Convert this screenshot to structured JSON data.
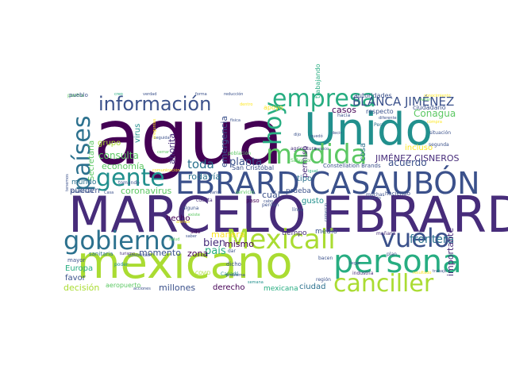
{
  "colors": {
    "background": "#ffffff",
    "palette": [
      "#440154",
      "#472c7a",
      "#3b518b",
      "#2c718e",
      "#21908d",
      "#27ad81",
      "#5cc863",
      "#aadc32",
      "#fde725"
    ]
  },
  "words": [
    {
      "text": "agua",
      "color": "#440154"
    },
    {
      "text": "MARCELO EBRARD",
      "color": "#472c7a"
    },
    {
      "text": "mexicano",
      "color": "#aadc32"
    },
    {
      "text": "Unido",
      "color": "#21908d"
    },
    {
      "text": "EBRARD CASAUBÓN",
      "color": "#3b518b"
    },
    {
      "text": "persona",
      "color": "#27ad81"
    },
    {
      "text": "gobierno",
      "color": "#2c718e"
    },
    {
      "text": "Mexicali",
      "color": "#aadc32"
    },
    {
      "text": "canciller",
      "color": "#aadc32"
    },
    {
      "text": "vuelo",
      "color": "#3b518b"
    },
    {
      "text": "medida",
      "color": "#5cc863"
    },
    {
      "text": "empresa",
      "color": "#27ad81"
    },
    {
      "text": "información",
      "color": "#3b518b"
    },
    {
      "text": "gente",
      "color": "#21908d"
    },
    {
      "text": "países",
      "color": "#2c718e"
    },
    {
      "text": "hoy",
      "color": "#27ad81"
    },
    {
      "text": "BLANCA JIMÉNEZ",
      "color": "#3b518b"
    },
    {
      "text": "JIMÉNEZ CISNEROS",
      "color": "#472c7a"
    },
    {
      "text": "Conagua",
      "color": "#5cc863"
    },
    {
      "text": "frontera",
      "color": "#2c718e"
    },
    {
      "text": "acuerdo",
      "color": "#3b518b"
    },
    {
      "text": "importante",
      "color": "#472c7a"
    },
    {
      "text": "toda",
      "color": "#2c718e"
    },
    {
      "text": "planta",
      "color": "#3b518b"
    },
    {
      "text": "bien",
      "color": "#472c7a"
    },
    {
      "text": "mismo",
      "color": "#440154"
    },
    {
      "text": "país",
      "color": "#27ad81"
    },
    {
      "text": "momento",
      "color": "#3b518b"
    },
    {
      "text": "zona",
      "color": "#440154"
    },
    {
      "text": "manera",
      "color": "#fde725"
    },
    {
      "text": "casos",
      "color": "#440154"
    },
    {
      "text": "permiso",
      "color": "#472c7a"
    },
    {
      "text": "tipo",
      "color": "#2c718e"
    },
    {
      "text": "cosa",
      "color": "#2c718e"
    },
    {
      "text": "incluso",
      "color": "#fde725"
    },
    {
      "text": "ahorita",
      "color": "#472c7a"
    },
    {
      "text": "rodavía",
      "color": "#2c718e"
    },
    {
      "text": "emergencia",
      "color": "#3b518b"
    },
    {
      "text": "consulta",
      "color": "#5cc863"
    },
    {
      "text": "economía",
      "color": "#5cc863"
    },
    {
      "text": "coronavirus",
      "color": "#5cc863"
    },
    {
      "text": "Secretaría",
      "color": "#5cc863"
    },
    {
      "text": "virus",
      "color": "#21908d"
    },
    {
      "text": "grupo",
      "color": "#aadc32"
    },
    {
      "text": "mundo",
      "color": "#2c718e"
    },
    {
      "text": "pueden",
      "color": "#3b518b"
    },
    {
      "text": "hecho",
      "color": "#440154"
    },
    {
      "text": "Europa",
      "color": "#27ad81"
    },
    {
      "text": "favor",
      "color": "#3b518b"
    },
    {
      "text": "decisión",
      "color": "#aadc32"
    },
    {
      "text": "millones",
      "color": "#3b518b"
    },
    {
      "text": "derecho",
      "color": "#440154"
    },
    {
      "text": "mexicana",
      "color": "#27ad81"
    },
    {
      "text": "ciudad",
      "color": "#2c718e"
    },
    {
      "text": "medio",
      "color": "#3b518b"
    },
    {
      "text": "tiempo",
      "color": "#472c7a"
    },
    {
      "text": "prueba",
      "color": "#3b518b"
    },
    {
      "text": "cuál",
      "color": "#3b518b"
    },
    {
      "text": "gusto",
      "color": "#21908d"
    },
    {
      "text": "autoridades",
      "color": "#3b518b"
    },
    {
      "text": "ciudadano",
      "color": "#3b518b"
    },
    {
      "text": "trabajando",
      "color": "#27ad81"
    },
    {
      "text": "respecto",
      "color": "#3b518b"
    },
    {
      "text": "San Cristóbal",
      "color": "#3b518b"
    },
    {
      "text": "Constellation Brands",
      "color": "#3b518b"
    },
    {
      "text": "agricultura",
      "color": "#472c7a"
    },
    {
      "text": "sanitaria",
      "color": "#2c718e"
    },
    {
      "text": "mayor",
      "color": "#3b518b"
    },
    {
      "text": "sido",
      "color": "#440154"
    },
    {
      "text": "puebla",
      "color": "#5cc863"
    },
    {
      "text": "tomando",
      "color": "#3b518b"
    },
    {
      "text": "servicio",
      "color": "#5cc863"
    },
    {
      "text": "haciendo",
      "color": "#3b518b"
    },
    {
      "text": "muchas",
      "color": "#3b518b"
    },
    {
      "text": "plan",
      "color": "#3b518b"
    },
    {
      "text": "región",
      "color": "#3b518b"
    },
    {
      "text": "industria",
      "color": "#472c7a"
    },
    {
      "text": "mañana",
      "color": "#472c7a"
    },
    {
      "text": "Canadá",
      "color": "#21908d"
    },
    {
      "text": "COVID",
      "color": "#aadc32"
    },
    {
      "text": "dicho",
      "color": "#3b518b"
    },
    {
      "text": "aeropuerto",
      "color": "#5cc863"
    },
    {
      "text": "poder",
      "color": "#21908d"
    },
    {
      "text": "alguna",
      "color": "#3b518b"
    },
    {
      "text": "cuenta",
      "color": "#472c7a"
    },
    {
      "text": "paso",
      "color": "#440154"
    },
    {
      "text": "dar",
      "color": "#3b518b"
    },
    {
      "text": "bacen",
      "color": "#3b518b"
    },
    {
      "text": "perdón",
      "color": "#3b518b"
    },
    {
      "text": "línea",
      "color": "#3b518b"
    },
    {
      "text": "Guatemala",
      "color": "#3b518b"
    },
    {
      "text": "Casa",
      "color": "#3b518b"
    },
    {
      "text": "segunda",
      "color": "#3b518b"
    },
    {
      "text": "Perú",
      "color": "#2c718e"
    },
    {
      "text": "trabajo",
      "color": "#3b518b"
    },
    {
      "text": "Salvador",
      "color": "#5cc863"
    },
    {
      "text": "apoyo",
      "color": "#fde725"
    },
    {
      "text": "diferente",
      "color": "#3b518b"
    },
    {
      "text": "verdad",
      "color": "#3b518b"
    },
    {
      "text": "forma",
      "color": "#3b518b"
    },
    {
      "text": "reducción",
      "color": "#3b518b"
    },
    {
      "text": "creo",
      "color": "#27ad81"
    },
    {
      "text": "problema",
      "color": "#3b518b"
    },
    {
      "text": "resultado",
      "color": "#fde725"
    },
    {
      "text": "situación",
      "color": "#3b518b"
    },
    {
      "text": "pueblo",
      "color": "#3b518b"
    },
    {
      "text": "hacia",
      "color": "#3b518b"
    },
    {
      "text": "seguida",
      "color": "#3b518b"
    },
    {
      "text": "dijo",
      "color": "#3b518b"
    },
    {
      "text": "cerrar",
      "color": "#5cc863"
    },
    {
      "text": "salud",
      "color": "#5cc863"
    },
    {
      "text": "población",
      "color": "#5cc863"
    },
    {
      "text": "física",
      "color": "#3b518b"
    },
    {
      "text": "comercio",
      "color": "#3b518b"
    },
    {
      "text": "turismo",
      "color": "#472c7a"
    },
    {
      "text": "posibilidad",
      "color": "#3b518b"
    },
    {
      "text": "saber",
      "color": "#3b518b"
    },
    {
      "text": "cabo",
      "color": "#3b518b"
    },
    {
      "text": "existe",
      "color": "#5cc863"
    },
    {
      "text": "semana",
      "color": "#21908d"
    },
    {
      "text": "acciones",
      "color": "#3b518b"
    },
    {
      "text": "varios",
      "color": "#3b518b"
    },
    {
      "text": "tenemos",
      "color": "#3b518b"
    },
    {
      "text": "llegar",
      "color": "#3b518b"
    },
    {
      "text": "preguntas",
      "color": "#fde725"
    },
    {
      "text": "dentro",
      "color": "#fde725"
    },
    {
      "text": "compra",
      "color": "#fde725"
    },
    {
      "text": "igual",
      "color": "#27ad81"
    },
    {
      "text": "comunicación",
      "color": "#fde725"
    },
    {
      "text": "evitar",
      "color": "#5cc863"
    },
    {
      "text": "cuidado",
      "color": "#3b518b"
    },
    {
      "text": "conocimiento",
      "color": "#fde725"
    },
    {
      "text": "alertas",
      "color": "#fde725"
    },
    {
      "text": "quedó",
      "color": "#3b518b"
    },
    {
      "text": "decir",
      "color": "#3b518b"
    },
    {
      "text": "mexico",
      "color": "#3b518b"
    }
  ]
}
